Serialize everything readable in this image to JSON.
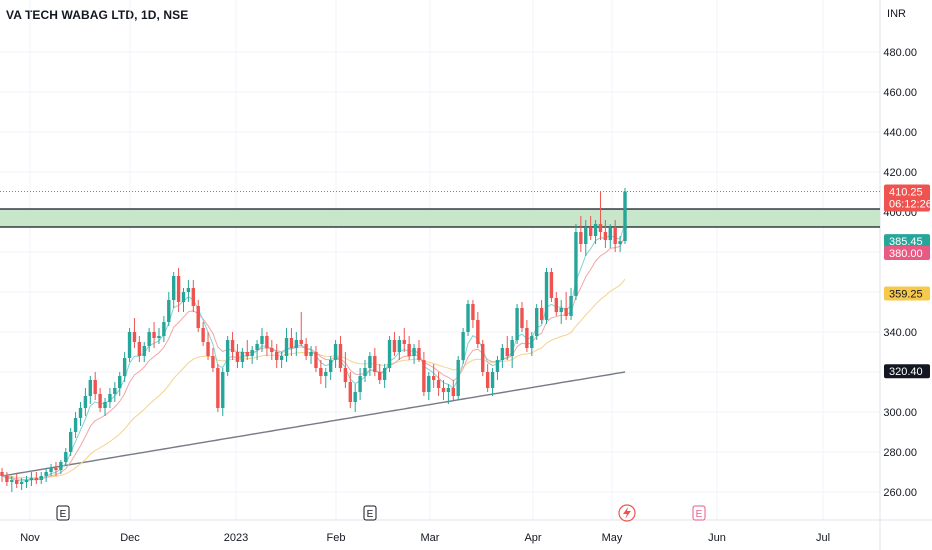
{
  "header": {
    "title": "VA TECH WABAG LTD, 1D, NSE",
    "currency": "INR"
  },
  "colors": {
    "up": "#26a69a",
    "down": "#ef5350",
    "ema_fast": "#7fd3cf",
    "ema_mid": "#f4a6a5",
    "ema_slow": "#f5d28b",
    "ma_long": "#787b86",
    "zone_fill": "#c8e6c9",
    "price_tag_last": "#ef5350",
    "tag_385": "#26a69a",
    "tag_380": "#e85a82",
    "tag_359": "#f7c94b",
    "tag_320": "#131722"
  },
  "chart_data": {
    "type": "candlestick",
    "title": "VA TECH WABAG LTD, 1D, NSE",
    "ylabel": "INR",
    "ylim": [
      252,
      500
    ],
    "y_ticks": [
      "480.00",
      "460.00",
      "440.00",
      "420.00",
      "400.00",
      "380.00",
      "360.00",
      "340.00",
      "320.00",
      "300.00",
      "280.00",
      "260.00"
    ],
    "x_ticks": [
      "Nov",
      "Dec",
      "2023",
      "Feb",
      "Mar",
      "Apr",
      "May",
      "Jun",
      "Jul"
    ],
    "horizontal_zone": {
      "low": 393,
      "high": 401
    },
    "last_price": "410.25",
    "countdown": "06:12:26",
    "price_labels": [
      "385.45",
      "380.00",
      "359.25",
      "320.40"
    ],
    "event_markers": [
      "E",
      "E",
      "E",
      "E"
    ],
    "candles": [
      [
        270,
        272,
        265,
        268
      ],
      [
        268,
        270,
        263,
        265
      ],
      [
        265,
        268,
        260,
        266
      ],
      [
        266,
        269,
        262,
        264
      ],
      [
        264,
        267,
        261,
        265
      ],
      [
        265,
        268,
        262,
        266
      ],
      [
        266,
        270,
        263,
        267
      ],
      [
        267,
        270,
        264,
        266
      ],
      [
        266,
        270,
        264,
        268
      ],
      [
        268,
        272,
        265,
        270
      ],
      [
        270,
        274,
        268,
        272
      ],
      [
        272,
        275,
        268,
        271
      ],
      [
        271,
        276,
        269,
        275
      ],
      [
        275,
        282,
        273,
        280
      ],
      [
        280,
        292,
        278,
        290
      ],
      [
        290,
        300,
        287,
        297
      ],
      [
        297,
        305,
        293,
        302
      ],
      [
        302,
        312,
        298,
        308
      ],
      [
        308,
        318,
        304,
        316
      ],
      [
        316,
        320,
        306,
        309
      ],
      [
        309,
        312,
        300,
        302
      ],
      [
        302,
        307,
        298,
        305
      ],
      [
        305,
        312,
        302,
        309
      ],
      [
        309,
        315,
        305,
        312
      ],
      [
        312,
        320,
        308,
        318
      ],
      [
        318,
        330,
        315,
        327
      ],
      [
        327,
        342,
        325,
        340
      ],
      [
        340,
        347,
        332,
        335
      ],
      [
        335,
        338,
        325,
        328
      ],
      [
        328,
        335,
        325,
        333
      ],
      [
        333,
        342,
        330,
        340
      ],
      [
        340,
        345,
        332,
        337
      ],
      [
        337,
        342,
        334,
        338
      ],
      [
        338,
        348,
        335,
        345
      ],
      [
        345,
        360,
        343,
        356
      ],
      [
        356,
        370,
        352,
        368
      ],
      [
        368,
        372,
        350,
        355
      ],
      [
        355,
        362,
        350,
        360
      ],
      [
        360,
        366,
        355,
        362
      ],
      [
        362,
        366,
        350,
        353
      ],
      [
        353,
        356,
        340,
        342
      ],
      [
        342,
        345,
        333,
        335
      ],
      [
        335,
        340,
        326,
        328
      ],
      [
        328,
        332,
        320,
        322
      ],
      [
        322,
        324,
        300,
        302
      ],
      [
        302,
        322,
        298,
        320
      ],
      [
        320,
        338,
        318,
        336
      ],
      [
        336,
        340,
        326,
        330
      ],
      [
        330,
        334,
        322,
        325
      ],
      [
        325,
        332,
        322,
        330
      ],
      [
        330,
        336,
        326,
        328
      ],
      [
        328,
        333,
        324,
        331
      ],
      [
        331,
        336,
        326,
        334
      ],
      [
        334,
        342,
        330,
        338
      ],
      [
        338,
        340,
        328,
        332
      ],
      [
        332,
        336,
        326,
        330
      ],
      [
        330,
        334,
        322,
        326
      ],
      [
        326,
        330,
        322,
        328
      ],
      [
        328,
        342,
        325,
        337
      ],
      [
        337,
        342,
        328,
        332
      ],
      [
        332,
        340,
        328,
        336
      ],
      [
        336,
        350,
        333,
        334
      ],
      [
        334,
        337,
        326,
        328
      ],
      [
        328,
        333,
        324,
        330
      ],
      [
        330,
        333,
        320,
        322
      ],
      [
        322,
        326,
        314,
        318
      ],
      [
        318,
        322,
        312,
        320
      ],
      [
        320,
        328,
        316,
        326
      ],
      [
        326,
        336,
        322,
        334
      ],
      [
        334,
        338,
        320,
        322
      ],
      [
        322,
        330,
        312,
        315
      ],
      [
        315,
        320,
        302,
        305
      ],
      [
        305,
        314,
        300,
        310
      ],
      [
        310,
        322,
        306,
        318
      ],
      [
        318,
        326,
        315,
        322
      ],
      [
        322,
        330,
        318,
        328
      ],
      [
        328,
        332,
        318,
        320
      ],
      [
        320,
        324,
        314,
        316
      ],
      [
        316,
        324,
        312,
        322
      ],
      [
        322,
        338,
        320,
        336
      ],
      [
        336,
        340,
        328,
        330
      ],
      [
        330,
        338,
        326,
        336
      ],
      [
        336,
        342,
        330,
        334
      ],
      [
        334,
        338,
        326,
        328
      ],
      [
        328,
        334,
        324,
        332
      ],
      [
        332,
        336,
        325,
        326
      ],
      [
        326,
        330,
        308,
        310
      ],
      [
        310,
        320,
        306,
        318
      ],
      [
        318,
        324,
        312,
        316
      ],
      [
        316,
        320,
        308,
        312
      ],
      [
        312,
        316,
        306,
        310
      ],
      [
        310,
        314,
        304,
        312
      ],
      [
        312,
        316,
        306,
        308
      ],
      [
        308,
        328,
        306,
        326
      ],
      [
        326,
        342,
        324,
        340
      ],
      [
        340,
        356,
        338,
        354
      ],
      [
        354,
        356,
        342,
        346
      ],
      [
        346,
        350,
        332,
        334
      ],
      [
        334,
        336,
        318,
        320
      ],
      [
        320,
        324,
        310,
        312
      ],
      [
        312,
        322,
        308,
        320
      ],
      [
        320,
        328,
        316,
        326
      ],
      [
        326,
        334,
        322,
        332
      ],
      [
        332,
        338,
        326,
        328
      ],
      [
        328,
        338,
        322,
        336
      ],
      [
        336,
        354,
        334,
        352
      ],
      [
        352,
        355,
        340,
        342
      ],
      [
        342,
        346,
        330,
        332
      ],
      [
        332,
        340,
        328,
        338
      ],
      [
        338,
        354,
        336,
        352
      ],
      [
        352,
        356,
        344,
        346
      ],
      [
        346,
        372,
        344,
        370
      ],
      [
        370,
        372,
        355,
        357
      ],
      [
        357,
        360,
        348,
        350
      ],
      [
        350,
        356,
        344,
        352
      ],
      [
        352,
        360,
        346,
        348
      ],
      [
        348,
        362,
        346,
        358
      ],
      [
        358,
        394,
        356,
        390
      ],
      [
        390,
        398,
        380,
        384
      ],
      [
        384,
        396,
        378,
        392
      ],
      [
        392,
        398,
        386,
        388
      ],
      [
        388,
        396,
        384,
        394
      ],
      [
        394,
        410,
        386,
        390
      ],
      [
        390,
        396,
        382,
        386
      ],
      [
        386,
        394,
        382,
        392
      ],
      [
        392,
        396,
        380,
        384
      ],
      [
        384,
        388,
        380,
        385.45
      ],
      [
        385.45,
        412,
        384,
        410.25
      ]
    ]
  }
}
